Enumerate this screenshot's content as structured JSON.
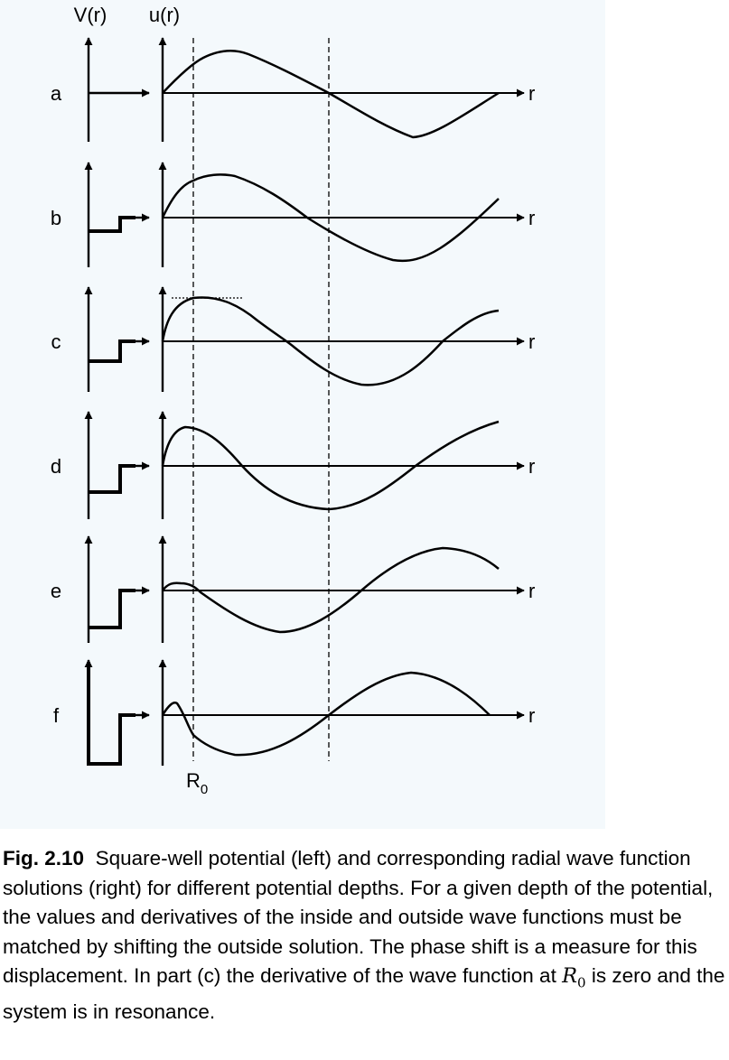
{
  "figure": {
    "axis_label_potential": "V(r)",
    "axis_label_wavefunction": "u(r)",
    "axis_label_r": "r",
    "radius_label": "R",
    "radius_subscript": "0",
    "panels": [
      {
        "label": "a",
        "well_depth": 0
      },
      {
        "label": "b",
        "well_depth": 0.2
      },
      {
        "label": "c",
        "well_depth": 0.4
      },
      {
        "label": "d",
        "well_depth": 0.6
      },
      {
        "label": "e",
        "well_depth": 0.8
      },
      {
        "label": "f",
        "well_depth": 1.0
      }
    ]
  },
  "caption": {
    "label": "Fig. 2.10",
    "text_part1": "Square-well potential (left) and corresponding radial wave function solutions (right) for different potential depths. For a given depth of the potential, the values and derivatives of the inside and outside wave functions must be matched by shifting the outside solution. The phase shift is a measure for this displacement. In part (c) the derivative of the wave function at",
    "math_symbol": "R",
    "math_subscript": "0",
    "text_part2": "is zero and the system is in resonance."
  }
}
